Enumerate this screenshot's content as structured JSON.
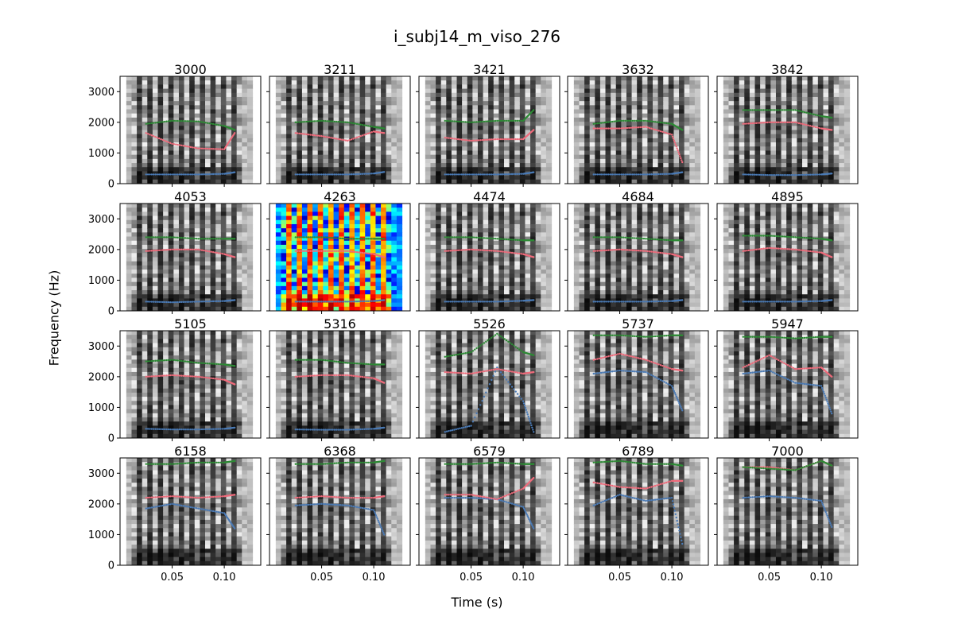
{
  "figure": {
    "title": "i_subj14_m_viso_276",
    "xlabel": "Time (s)",
    "ylabel": "Frequency (Hz)"
  },
  "colors": {
    "f1": "#4a7ab5",
    "f2": "#ef6b7b",
    "f3": "#2c8a34",
    "spectrogram": "grayscale",
    "highlight_spectrogram": "jet"
  },
  "chart_data": {
    "type": "scatter",
    "layout": "4x5 grid of spectrogram panels with formant tracks",
    "ylim": [
      0,
      3500
    ],
    "yticks": [
      0,
      1000,
      2000,
      3000
    ],
    "xlim": [
      0,
      0.135
    ],
    "xticks": [
      0.05,
      0.1
    ],
    "xtick_labels": [
      "0.05",
      "0.10"
    ],
    "series_colors": [
      "#4a7ab5",
      "#ef6b7b",
      "#2c8a34"
    ],
    "highlighted_panel": "4263",
    "panels": [
      {
        "title": "3000",
        "x": [
          0.025,
          0.05,
          0.075,
          0.1,
          0.11
        ],
        "f1": [
          300,
          300,
          300,
          320,
          370
        ],
        "f2": [
          1650,
          1300,
          1150,
          1120,
          1650
        ],
        "f3": [
          1950,
          2050,
          2030,
          1880,
          1750
        ]
      },
      {
        "title": "3211",
        "x": [
          0.025,
          0.05,
          0.075,
          0.1,
          0.11
        ],
        "f1": [
          300,
          300,
          300,
          330,
          380
        ],
        "f2": [
          1650,
          1550,
          1400,
          1700,
          1650
        ],
        "f3": [
          2000,
          2050,
          2000,
          1850,
          1800
        ]
      },
      {
        "title": "3421",
        "x": [
          0.025,
          0.05,
          0.075,
          0.1,
          0.11
        ],
        "f1": [
          300,
          300,
          300,
          320,
          370
        ],
        "f2": [
          1500,
          1400,
          1450,
          1450,
          1750
        ],
        "f3": [
          2050,
          2000,
          2050,
          2050,
          2400
        ]
      },
      {
        "title": "3632",
        "x": [
          0.025,
          0.05,
          0.075,
          0.1,
          0.11
        ],
        "f1": [
          300,
          300,
          300,
          320,
          370
        ],
        "f2": [
          1800,
          1800,
          1850,
          1600,
          700
        ],
        "f3": [
          1950,
          2050,
          2050,
          1950,
          1750
        ]
      },
      {
        "title": "3842",
        "x": [
          0.025,
          0.05,
          0.075,
          0.1,
          0.11
        ],
        "f1": [
          300,
          280,
          280,
          300,
          330
        ],
        "f2": [
          1950,
          2000,
          2000,
          1800,
          1750
        ],
        "f3": [
          2400,
          2400,
          2400,
          2200,
          2150
        ]
      },
      {
        "title": "4053",
        "x": [
          0.025,
          0.05,
          0.075,
          0.1,
          0.11
        ],
        "f1": [
          300,
          280,
          300,
          320,
          350
        ],
        "f2": [
          1950,
          2000,
          2000,
          1850,
          1750
        ],
        "f3": [
          2400,
          2400,
          2350,
          2350,
          2350
        ]
      },
      {
        "title": "4263",
        "x": [
          0.025,
          0.05,
          0.075,
          0.1,
          0.11
        ],
        "f1": [
          300,
          300,
          300,
          320,
          350
        ],
        "f2": [
          1950,
          1950,
          1950,
          1850,
          1750
        ],
        "f3": [
          2400,
          2400,
          2350,
          2350,
          2350
        ]
      },
      {
        "title": "4474",
        "x": [
          0.025,
          0.05,
          0.075,
          0.1,
          0.11
        ],
        "f1": [
          300,
          300,
          300,
          330,
          350
        ],
        "f2": [
          1950,
          2000,
          1950,
          1850,
          1750
        ],
        "f3": [
          2400,
          2400,
          2350,
          2300,
          2300
        ]
      },
      {
        "title": "4684",
        "x": [
          0.025,
          0.05,
          0.075,
          0.1,
          0.11
        ],
        "f1": [
          300,
          300,
          300,
          320,
          350
        ],
        "f2": [
          1950,
          2000,
          1950,
          1850,
          1750
        ],
        "f3": [
          2400,
          2400,
          2350,
          2300,
          2300
        ]
      },
      {
        "title": "4895",
        "x": [
          0.025,
          0.05,
          0.075,
          0.1,
          0.11
        ],
        "f1": [
          300,
          300,
          300,
          320,
          350
        ],
        "f2": [
          1950,
          2050,
          2000,
          1900,
          1750
        ],
        "f3": [
          2450,
          2450,
          2400,
          2350,
          2300
        ]
      },
      {
        "title": "5105",
        "x": [
          0.025,
          0.05,
          0.075,
          0.1,
          0.11
        ],
        "f1": [
          300,
          280,
          280,
          300,
          340
        ],
        "f2": [
          2000,
          2050,
          2000,
          1900,
          1750
        ],
        "f3": [
          2500,
          2550,
          2450,
          2400,
          2350
        ]
      },
      {
        "title": "5316",
        "x": [
          0.025,
          0.05,
          0.075,
          0.1,
          0.11
        ],
        "f1": [
          280,
          270,
          270,
          300,
          340
        ],
        "f2": [
          2000,
          2050,
          2050,
          1950,
          1800
        ],
        "f3": [
          2550,
          2550,
          2450,
          2400,
          2400
        ]
      },
      {
        "title": "5526",
        "x": [
          0.025,
          0.05,
          0.075,
          0.1,
          0.11
        ],
        "f1": [
          200,
          400,
          2300,
          1200,
          200
        ],
        "f2": [
          2150,
          2100,
          2250,
          2100,
          2150
        ],
        "f3": [
          2650,
          2800,
          3400,
          2800,
          2700
        ]
      },
      {
        "title": "5737",
        "x": [
          0.025,
          0.05,
          0.075,
          0.1,
          0.11
        ],
        "f1": [
          2100,
          2200,
          2150,
          1700,
          900
        ],
        "f2": [
          2550,
          2750,
          2550,
          2250,
          2200
        ],
        "f3": [
          3350,
          3350,
          3300,
          3350,
          3350
        ]
      },
      {
        "title": "5947",
        "x": [
          0.025,
          0.05,
          0.075,
          0.1,
          0.11
        ],
        "f1": [
          2100,
          2200,
          1800,
          1700,
          800
        ],
        "f2": [
          2300,
          2700,
          2250,
          2300,
          2000
        ],
        "f3": [
          3300,
          3300,
          3250,
          3300,
          3300
        ]
      },
      {
        "title": "6158",
        "x": [
          0.025,
          0.05,
          0.075,
          0.1,
          0.11
        ],
        "f1": [
          1850,
          2000,
          1850,
          1700,
          1200
        ],
        "f2": [
          2200,
          2250,
          2200,
          2250,
          2300
        ],
        "f3": [
          3300,
          3300,
          3350,
          3350,
          3400
        ]
      },
      {
        "title": "6368",
        "x": [
          0.025,
          0.05,
          0.075,
          0.1,
          0.11
        ],
        "f1": [
          1950,
          2000,
          1950,
          1800,
          1000
        ],
        "f2": [
          2200,
          2250,
          2200,
          2200,
          2250
        ],
        "f3": [
          3300,
          3300,
          3350,
          3350,
          3400
        ]
      },
      {
        "title": "6579",
        "x": [
          0.025,
          0.05,
          0.075,
          0.1,
          0.11
        ],
        "f1": [
          2200,
          2200,
          2150,
          1900,
          1200
        ],
        "f2": [
          2300,
          2300,
          2150,
          2500,
          2850
        ],
        "f3": [
          3300,
          3300,
          3350,
          3300,
          3300
        ]
      },
      {
        "title": "6789",
        "x": [
          0.025,
          0.05,
          0.075,
          0.1,
          0.11
        ],
        "f1": [
          1950,
          2300,
          2100,
          2200,
          700
        ],
        "f2": [
          2700,
          2550,
          2500,
          2750,
          2750
        ],
        "f3": [
          3350,
          3400,
          3300,
          3300,
          3250
        ]
      },
      {
        "title": "7000",
        "x": [
          0.025,
          0.05,
          0.075,
          0.1,
          0.11
        ],
        "f1": [
          2200,
          2250,
          2200,
          2100,
          1250
        ],
        "f2": [
          3200,
          3200,
          3100,
          3400,
          3250
        ],
        "f3": [
          3200,
          3150,
          3100,
          3400,
          3250
        ]
      }
    ]
  }
}
